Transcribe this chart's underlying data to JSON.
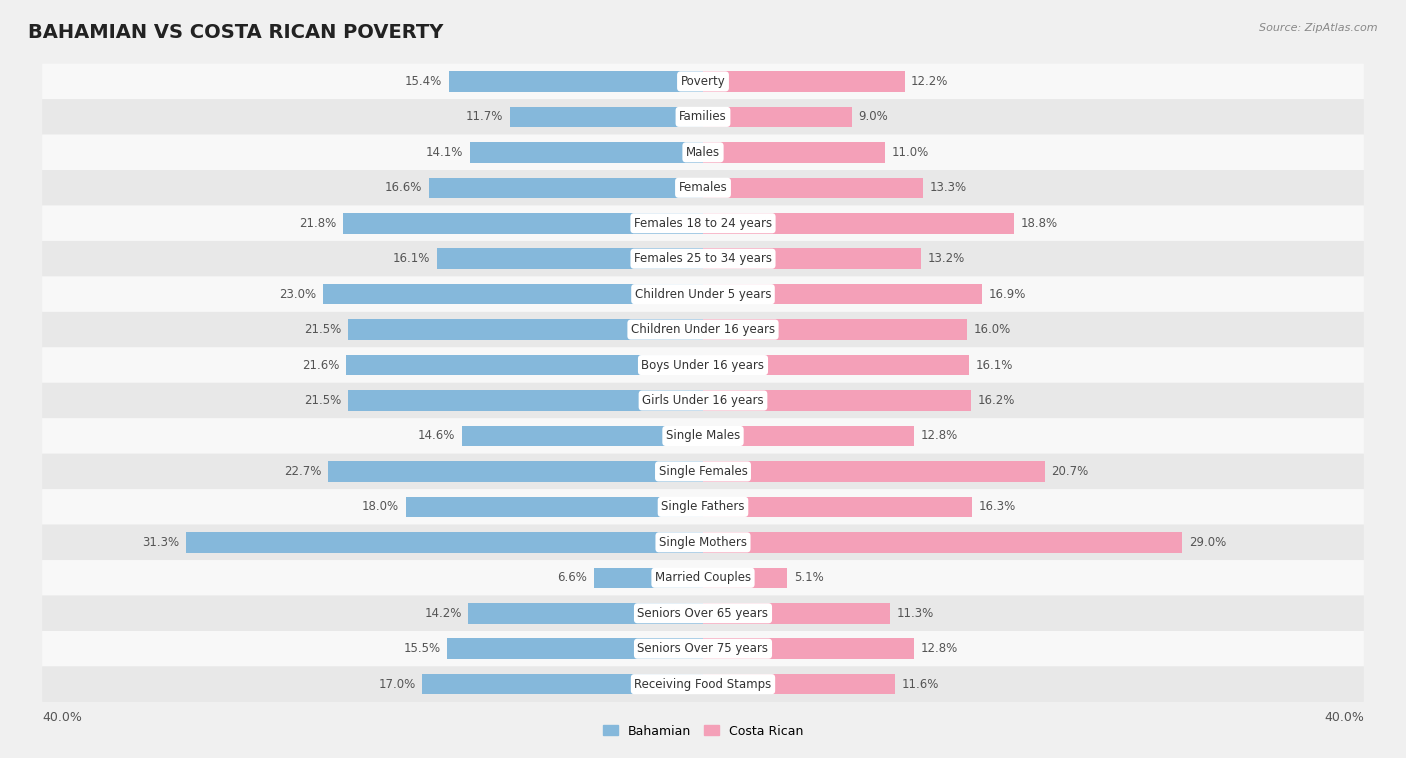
{
  "title": "BAHAMIAN VS COSTA RICAN POVERTY",
  "source": "Source: ZipAtlas.com",
  "categories": [
    "Poverty",
    "Families",
    "Males",
    "Females",
    "Females 18 to 24 years",
    "Females 25 to 34 years",
    "Children Under 5 years",
    "Children Under 16 years",
    "Boys Under 16 years",
    "Girls Under 16 years",
    "Single Males",
    "Single Females",
    "Single Fathers",
    "Single Mothers",
    "Married Couples",
    "Seniors Over 65 years",
    "Seniors Over 75 years",
    "Receiving Food Stamps"
  ],
  "bahamian": [
    15.4,
    11.7,
    14.1,
    16.6,
    21.8,
    16.1,
    23.0,
    21.5,
    21.6,
    21.5,
    14.6,
    22.7,
    18.0,
    31.3,
    6.6,
    14.2,
    15.5,
    17.0
  ],
  "costa_rican": [
    12.2,
    9.0,
    11.0,
    13.3,
    18.8,
    13.2,
    16.9,
    16.0,
    16.1,
    16.2,
    12.8,
    20.7,
    16.3,
    29.0,
    5.1,
    11.3,
    12.8,
    11.6
  ],
  "bahamian_color": "#85b8db",
  "costa_rican_color": "#f4a0b8",
  "bar_height": 0.58,
  "xlim": 40,
  "background_color": "#f0f0f0",
  "row_bg_even": "#f8f8f8",
  "row_bg_odd": "#e8e8e8",
  "title_fontsize": 14,
  "label_fontsize": 8.5,
  "value_fontsize": 8.5,
  "tick_fontsize": 9,
  "title_color": "#222222",
  "source_color": "#888888",
  "value_color": "#555555",
  "label_color": "#333333"
}
